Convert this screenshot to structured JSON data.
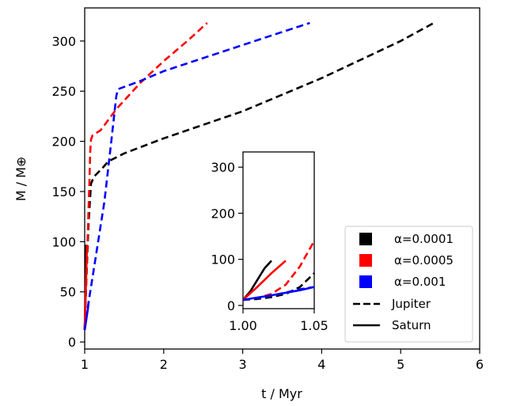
{
  "chart_data": {
    "type": "line",
    "xlabel": "t / Myr",
    "ylabel": "M / M⊕",
    "xlim": [
      1,
      6
    ],
    "ylim": [
      -7,
      333
    ],
    "xticks": [
      1,
      2,
      3,
      4,
      5,
      6
    ],
    "yticks": [
      0,
      50,
      100,
      150,
      200,
      250,
      300
    ],
    "legend": {
      "placement": "lower right",
      "alpha_entries": [
        {
          "label": "α=0.0001",
          "color": "#000000"
        },
        {
          "label": "α=0.0005",
          "color": "#ff0000"
        },
        {
          "label": "α=0.001",
          "color": "#0000ff"
        }
      ],
      "style_entries": [
        {
          "label": "Jupiter",
          "dash": "dashed"
        },
        {
          "label": "Saturn",
          "dash": "solid"
        }
      ]
    },
    "series": [
      {
        "planet": "Jupiter",
        "alpha": "α=0.0001",
        "color": "#000000",
        "dash": "dashed",
        "x": [
          1.0,
          1.02,
          1.05,
          1.08,
          1.12,
          1.22,
          1.3,
          1.5,
          2.0,
          3.0,
          4.0,
          5.0,
          5.42
        ],
        "y": [
          12,
          60,
          120,
          158,
          165,
          173,
          180,
          188,
          203,
          230,
          263,
          300,
          318
        ]
      },
      {
        "planet": "Jupiter",
        "alpha": "α=0.0005",
        "color": "#ff0000",
        "dash": "dashed",
        "x": [
          1.0,
          1.02,
          1.04,
          1.06,
          1.07,
          1.08,
          1.1,
          1.2,
          1.4,
          1.7,
          2.0,
          2.3,
          2.55
        ],
        "y": [
          12,
          60,
          110,
          160,
          190,
          202,
          206,
          211,
          232,
          258,
          280,
          300,
          318
        ]
      },
      {
        "planet": "Jupiter",
        "alpha": "α=0.001",
        "color": "#0000ff",
        "dash": "dashed",
        "x": [
          1.0,
          1.05,
          1.15,
          1.25,
          1.33,
          1.4,
          1.42,
          1.7,
          2.0,
          2.5,
          3.0,
          3.5,
          3.85
        ],
        "y": [
          12,
          40,
          90,
          140,
          195,
          245,
          252,
          260,
          270,
          283,
          296,
          309,
          318
        ]
      },
      {
        "planet": "Saturn",
        "alpha": "α=0.0001",
        "color": "#000000",
        "dash": "solid",
        "x": [
          1.0,
          1.005,
          1.01,
          1.015,
          1.02
        ],
        "y": [
          12,
          30,
          55,
          80,
          97
        ]
      },
      {
        "planet": "Saturn",
        "alpha": "α=0.0005",
        "color": "#ff0000",
        "dash": "solid",
        "x": [
          1.0,
          1.01,
          1.02,
          1.03
        ],
        "y": [
          12,
          40,
          70,
          97
        ]
      },
      {
        "planet": "Saturn",
        "alpha": "α=0.001",
        "color": "#0000ff",
        "dash": "solid",
        "x": [
          1.0,
          1.02,
          1.04,
          1.05
        ],
        "y": [
          12,
          22,
          33,
          40
        ]
      }
    ],
    "inset": {
      "xlim": [
        1.0,
        1.05
      ],
      "ylim": [
        -7,
        333
      ],
      "xticks": [
        1.0,
        1.05
      ],
      "xtick_labels": [
        "1.00",
        "1.05"
      ],
      "yticks": [
        0,
        100,
        200,
        300
      ],
      "series": [
        {
          "color": "#000000",
          "dash": "dashed",
          "x": [
            1.0,
            1.01,
            1.02,
            1.03,
            1.04,
            1.05
          ],
          "y": [
            12,
            14,
            18,
            25,
            40,
            70
          ]
        },
        {
          "color": "#ff0000",
          "dash": "dashed",
          "x": [
            1.0,
            1.01,
            1.02,
            1.03,
            1.04,
            1.05
          ],
          "y": [
            12,
            16,
            25,
            45,
            85,
            140
          ]
        },
        {
          "color": "#0000ff",
          "dash": "dashed",
          "x": [
            1.0,
            1.01,
            1.02,
            1.03,
            1.04,
            1.05
          ],
          "y": [
            12,
            16,
            21,
            28,
            35,
            40
          ]
        },
        {
          "color": "#000000",
          "dash": "solid",
          "x": [
            1.0,
            1.005,
            1.01,
            1.015,
            1.02
          ],
          "y": [
            12,
            30,
            55,
            80,
            97
          ]
        },
        {
          "color": "#ff0000",
          "dash": "solid",
          "x": [
            1.0,
            1.01,
            1.02,
            1.03
          ],
          "y": [
            12,
            40,
            70,
            97
          ]
        },
        {
          "color": "#0000ff",
          "dash": "solid",
          "x": [
            1.0,
            1.02,
            1.04,
            1.05
          ],
          "y": [
            12,
            22,
            33,
            40
          ]
        }
      ]
    }
  }
}
